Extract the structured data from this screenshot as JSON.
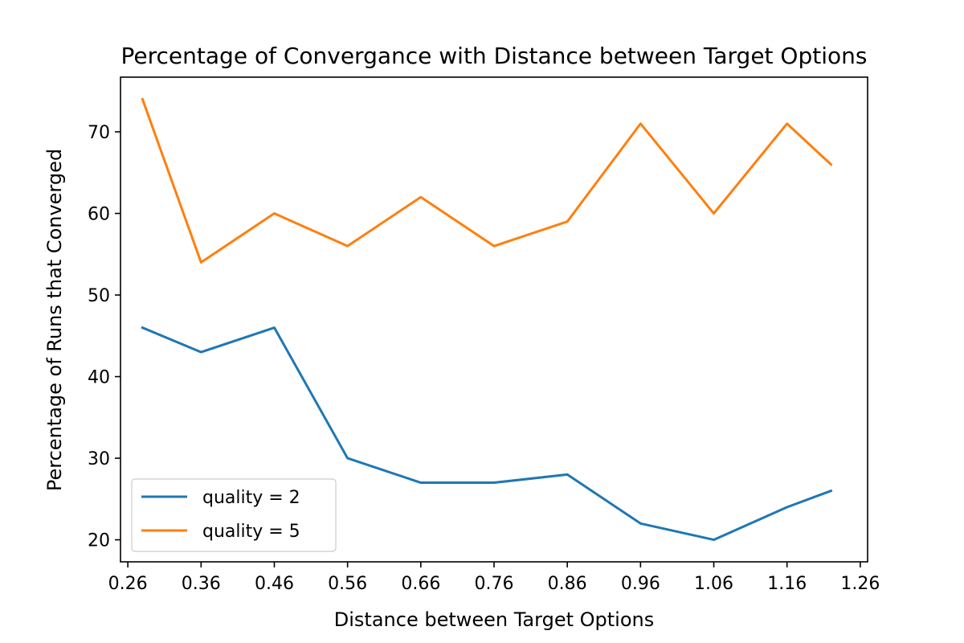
{
  "chart_data": {
    "type": "line",
    "title": "Percentage of Convergance with Distance between Target Options",
    "xlabel": "Distance between Target Options",
    "ylabel": "Percentage of Runs that Converged",
    "x": [
      0.28,
      0.36,
      0.46,
      0.56,
      0.66,
      0.76,
      0.86,
      0.96,
      1.06,
      1.16,
      1.22
    ],
    "xlim": [
      0.25,
      1.27
    ],
    "ylim": [
      17.3,
      76.7
    ],
    "xticks": [
      "0.26",
      "0.36",
      "0.46",
      "0.56",
      "0.66",
      "0.76",
      "0.86",
      "0.96",
      "1.06",
      "1.16",
      "1.26"
    ],
    "yticks": [
      "20",
      "30",
      "40",
      "50",
      "60",
      "70"
    ],
    "grid": false,
    "legend_position": "bottom-left",
    "series": [
      {
        "name": "quality = 2",
        "color": "#1f77b4",
        "values": [
          46,
          43,
          46,
          30,
          27,
          27,
          28,
          22,
          20,
          24,
          26
        ]
      },
      {
        "name": "quality = 5",
        "color": "#ff7f0e",
        "values": [
          74,
          54,
          60,
          56,
          62,
          56,
          59,
          71,
          60,
          71,
          66
        ]
      }
    ]
  }
}
